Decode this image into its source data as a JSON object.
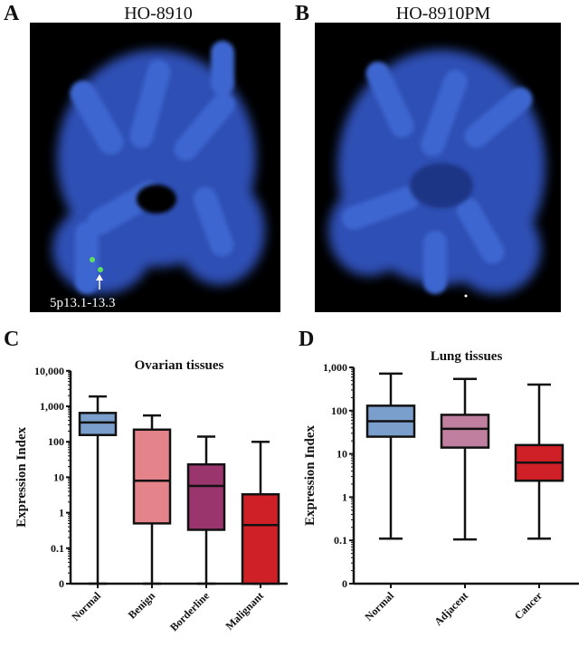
{
  "panels": {
    "a": {
      "letter": "A",
      "title": "HO-8910",
      "annotation": "5p13.1-13.3"
    },
    "b": {
      "letter": "B",
      "title": "HO-8910PM"
    },
    "c": {
      "letter": "C"
    },
    "d": {
      "letter": "D"
    }
  },
  "chart_data": [
    {
      "type": "box",
      "title": "Ovarian tissues",
      "ylabel": "Expression Index",
      "yscale": "log",
      "yticks": [
        "0",
        "0.1",
        "1",
        "10",
        "100",
        "1,000",
        "10,000"
      ],
      "categories": [
        "Normal",
        "Benign",
        "Borderline",
        "Malignant"
      ],
      "colors": [
        "#7b9fcc",
        "#e5838a",
        "#9b356d",
        "#cf2027"
      ],
      "boxes": [
        {
          "min": 0,
          "q1": 155,
          "median": 350,
          "q3": 650,
          "max": 1900
        },
        {
          "min": 0,
          "q1": 0.5,
          "median": 8,
          "q3": 220,
          "max": 550
        },
        {
          "min": 0,
          "q1": 0.33,
          "median": 5.7,
          "q3": 23,
          "max": 140
        },
        {
          "min": 0,
          "q1": 0,
          "median": 0.45,
          "q3": 3.3,
          "max": 100
        }
      ]
    },
    {
      "type": "box",
      "title": "Lung tissues",
      "ylabel": "Expression Index",
      "yscale": "log",
      "yticks": [
        "0",
        "0.1",
        "1",
        "10",
        "100",
        "1,000"
      ],
      "categories": [
        "Normal",
        "Adjacent",
        "Cancer"
      ],
      "colors": [
        "#7b9fcc",
        "#c07f9f",
        "#cf2027"
      ],
      "boxes": [
        {
          "min": 0.11,
          "q1": 25,
          "median": 57,
          "q3": 130,
          "max": 720
        },
        {
          "min": 0.105,
          "q1": 14,
          "median": 38,
          "q3": 80,
          "max": 540
        },
        {
          "min": 0.11,
          "q1": 2.4,
          "median": 6.3,
          "q3": 16,
          "max": 400
        }
      ]
    }
  ]
}
